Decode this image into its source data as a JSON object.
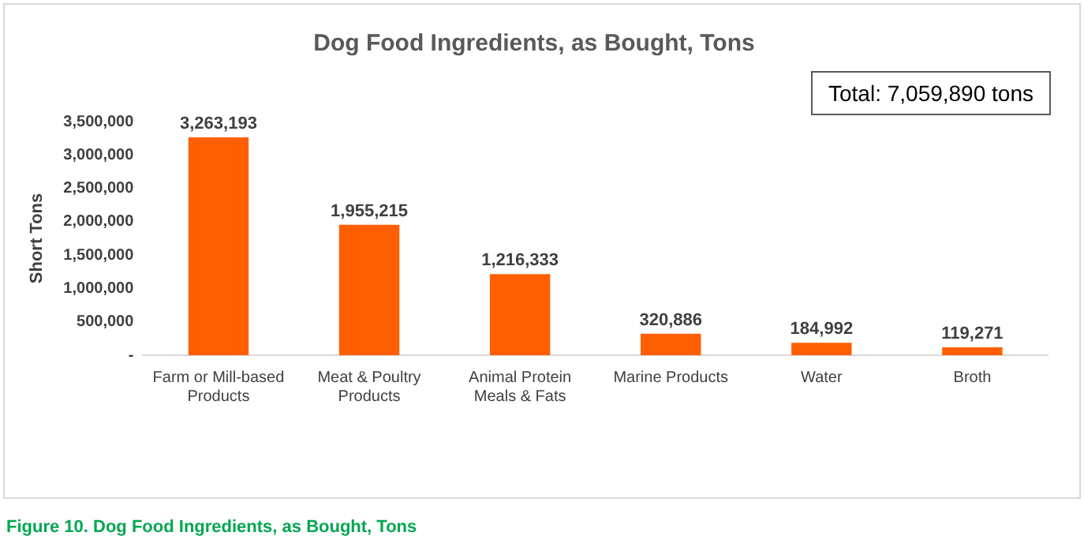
{
  "chart_data": {
    "type": "bar",
    "title": "Dog Food Ingredients, as Bought, Tons",
    "categories": [
      "Farm or Mill-based Products",
      "Meat & Poultry Products",
      "Animal Protein Meals & Fats",
      "Marine Products",
      "Water",
      "Broth"
    ],
    "values": [
      3263193,
      1955215,
      1216333,
      320886,
      184992,
      119271
    ],
    "color": "#ff5f00",
    "ylabel": "Short Tons",
    "ylim": [
      0,
      3500000
    ],
    "yticks": [
      {
        "value": 0,
        "label": "-"
      },
      {
        "value": 500000,
        "label": "500,000"
      },
      {
        "value": 1000000,
        "label": "1,000,000"
      },
      {
        "value": 1500000,
        "label": "1,500,000"
      },
      {
        "value": 2000000,
        "label": "2,000,000"
      },
      {
        "value": 2500000,
        "label": "2,500,000"
      },
      {
        "value": 3000000,
        "label": "3,000,000"
      },
      {
        "value": 3500000,
        "label": "3,500,000"
      }
    ],
    "grid": false,
    "legend": false,
    "value_labels": [
      "3,263,193",
      "1,955,215",
      "1,216,333",
      "320,886",
      "184,992",
      "119,271"
    ],
    "annotations": [
      "Total: 7,059,890 tons",
      "Figure 10. Dog Food Ingredients, as Bought, Tons"
    ]
  }
}
